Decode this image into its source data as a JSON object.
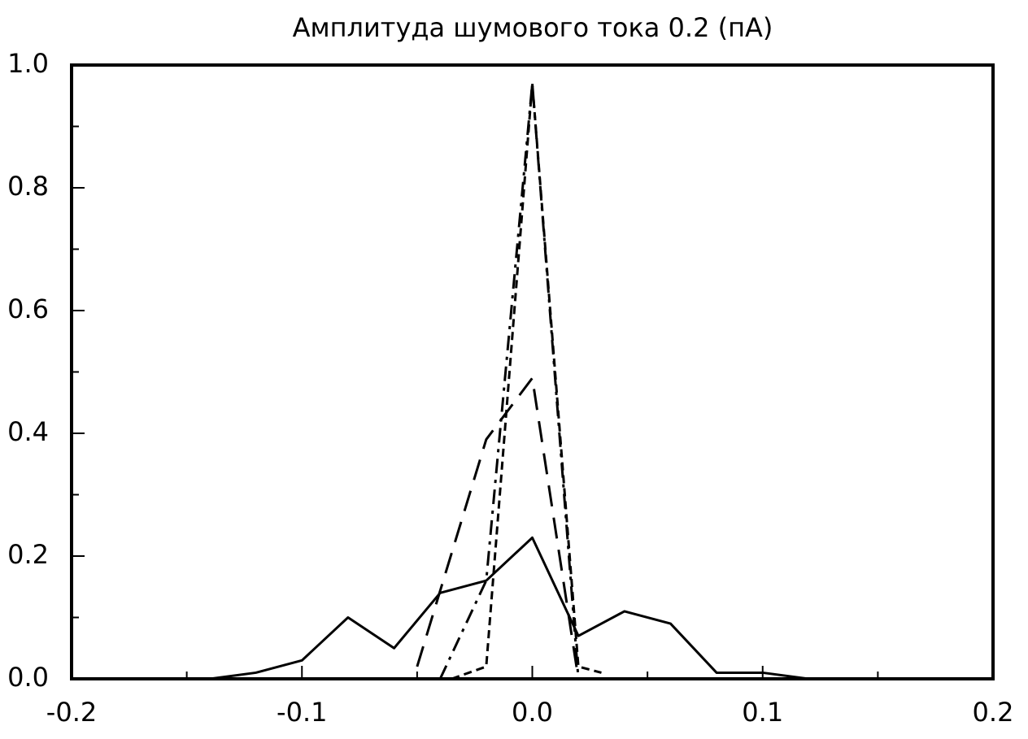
{
  "chart_data": {
    "type": "line",
    "title": "Амплитуда шумового тока 0.2 (пА)",
    "xlim": [
      -0.2,
      0.2
    ],
    "ylim": [
      0,
      1
    ],
    "xticks": [
      -0.2,
      -0.1,
      {
        "value": 0,
        "label": "0.0"
      },
      0.1,
      0.2
    ],
    "yticks": [
      {
        "value": 0,
        "label": "0.0"
      },
      0.2,
      0.4,
      0.6,
      0.8,
      {
        "value": 1,
        "label": "1.0"
      }
    ],
    "x_minor_ticks": [
      -0.15,
      -0.05,
      0.05,
      0.15
    ],
    "y_minor_ticks": [
      0.1,
      0.3,
      0.5,
      0.7,
      0.9
    ],
    "grid": false,
    "series": [
      {
        "color": "#000000",
        "dash": "solid",
        "x": [
          -0.14,
          -0.12,
          -0.1,
          -0.08,
          -0.06,
          -0.04,
          -0.02,
          0,
          0.02,
          0.04,
          0.06,
          0.08,
          0.1,
          0.12
        ],
        "values": [
          0,
          0.01,
          0.03,
          0.1,
          0.05,
          0.14,
          0.16,
          0.23,
          0.07,
          0.11,
          0.09,
          0.01,
          0.01,
          0
        ]
      },
      {
        "color": "#000000",
        "dash": "long-dash",
        "x": [
          -0.05,
          -0.02,
          0,
          0.02
        ],
        "values": [
          0.02,
          0.39,
          0.49,
          0
        ]
      },
      {
        "color": "#000000",
        "dash": "dash-dot",
        "x": [
          -0.04,
          -0.02,
          0,
          0.02
        ],
        "values": [
          0,
          0.16,
          0.97,
          0
        ]
      },
      {
        "color": "#000000",
        "dash": "short-dash",
        "x": [
          -0.035,
          -0.02,
          0,
          0.02,
          0.03
        ],
        "values": [
          0,
          0.02,
          0.97,
          0.02,
          0.01
        ]
      }
    ]
  }
}
